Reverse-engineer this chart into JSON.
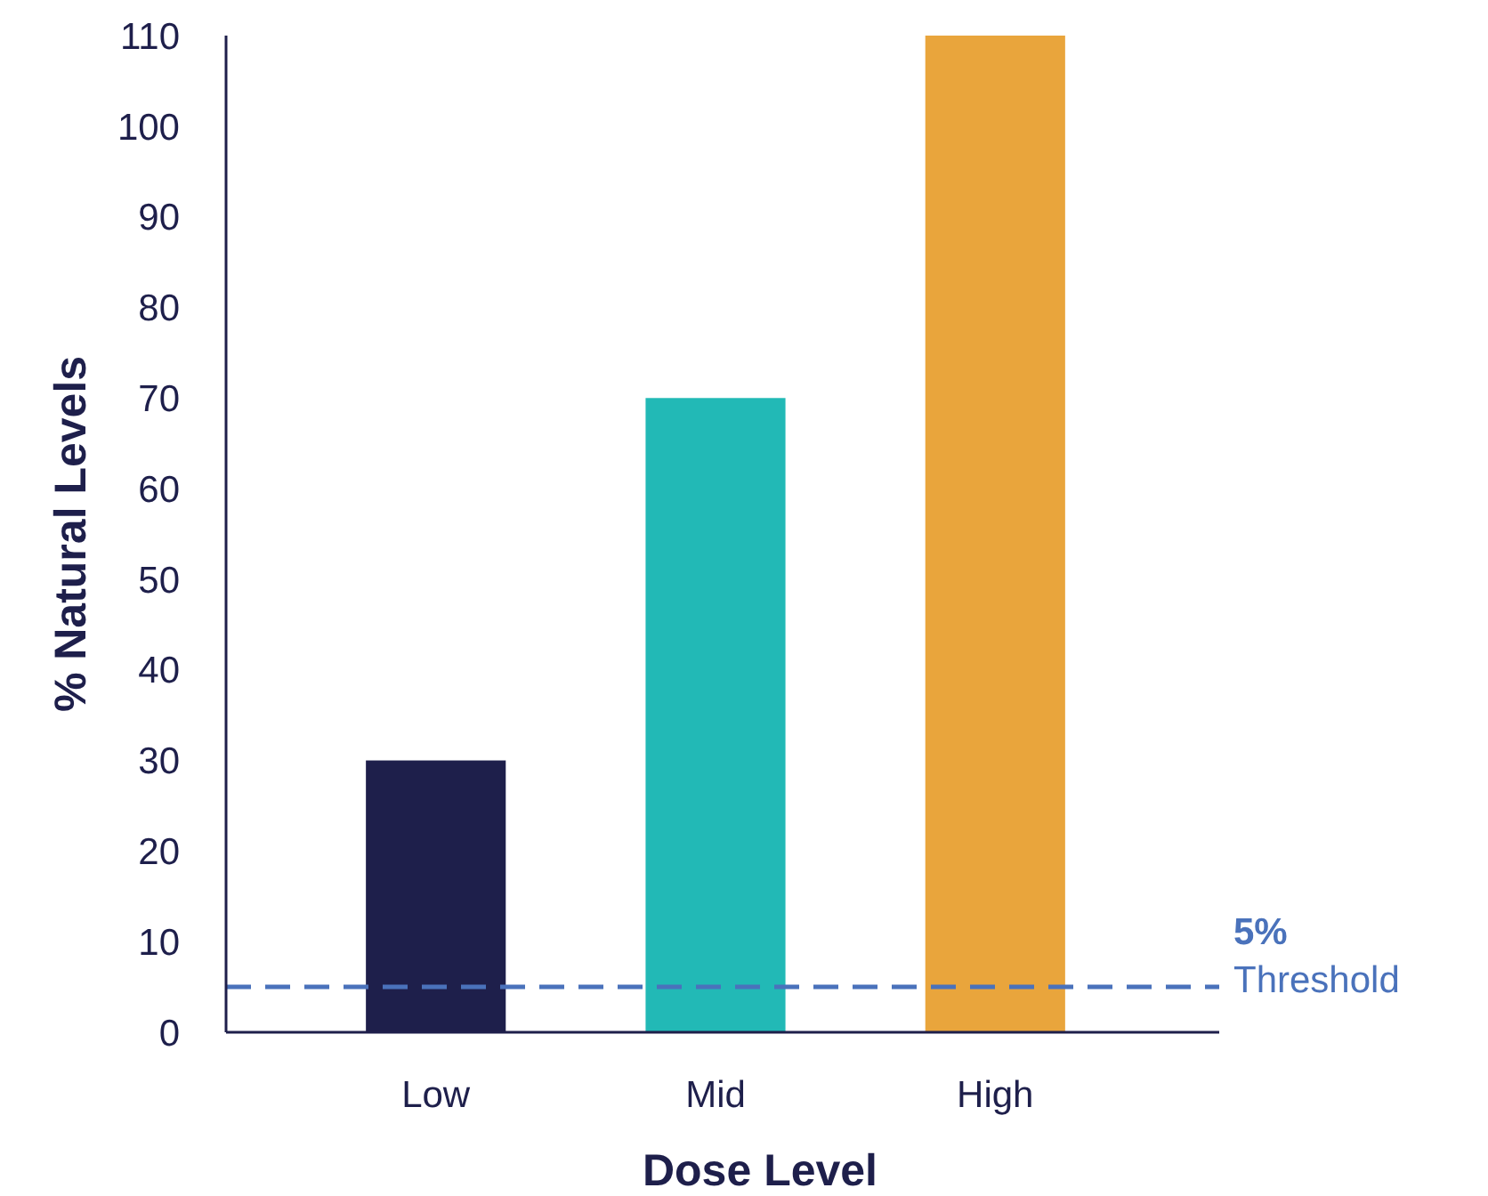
{
  "chart_data": {
    "type": "bar",
    "xlabel": "Dose Level",
    "ylabel": "% Natural Levels",
    "categories": [
      "Low",
      "Mid",
      "High"
    ],
    "values": [
      30,
      70,
      110
    ],
    "colors": [
      "#1e1f4b",
      "#22b9b6",
      "#e9a53c"
    ],
    "ylim": [
      0,
      110
    ],
    "yticks": [
      0,
      10,
      20,
      30,
      40,
      50,
      60,
      70,
      80,
      90,
      100,
      110
    ],
    "grid": false,
    "ref_lines": [
      {
        "axis": "y",
        "value": 5,
        "label": "5%\nThreshold",
        "color": "#4a72bb",
        "line_style": "dashed"
      }
    ]
  }
}
